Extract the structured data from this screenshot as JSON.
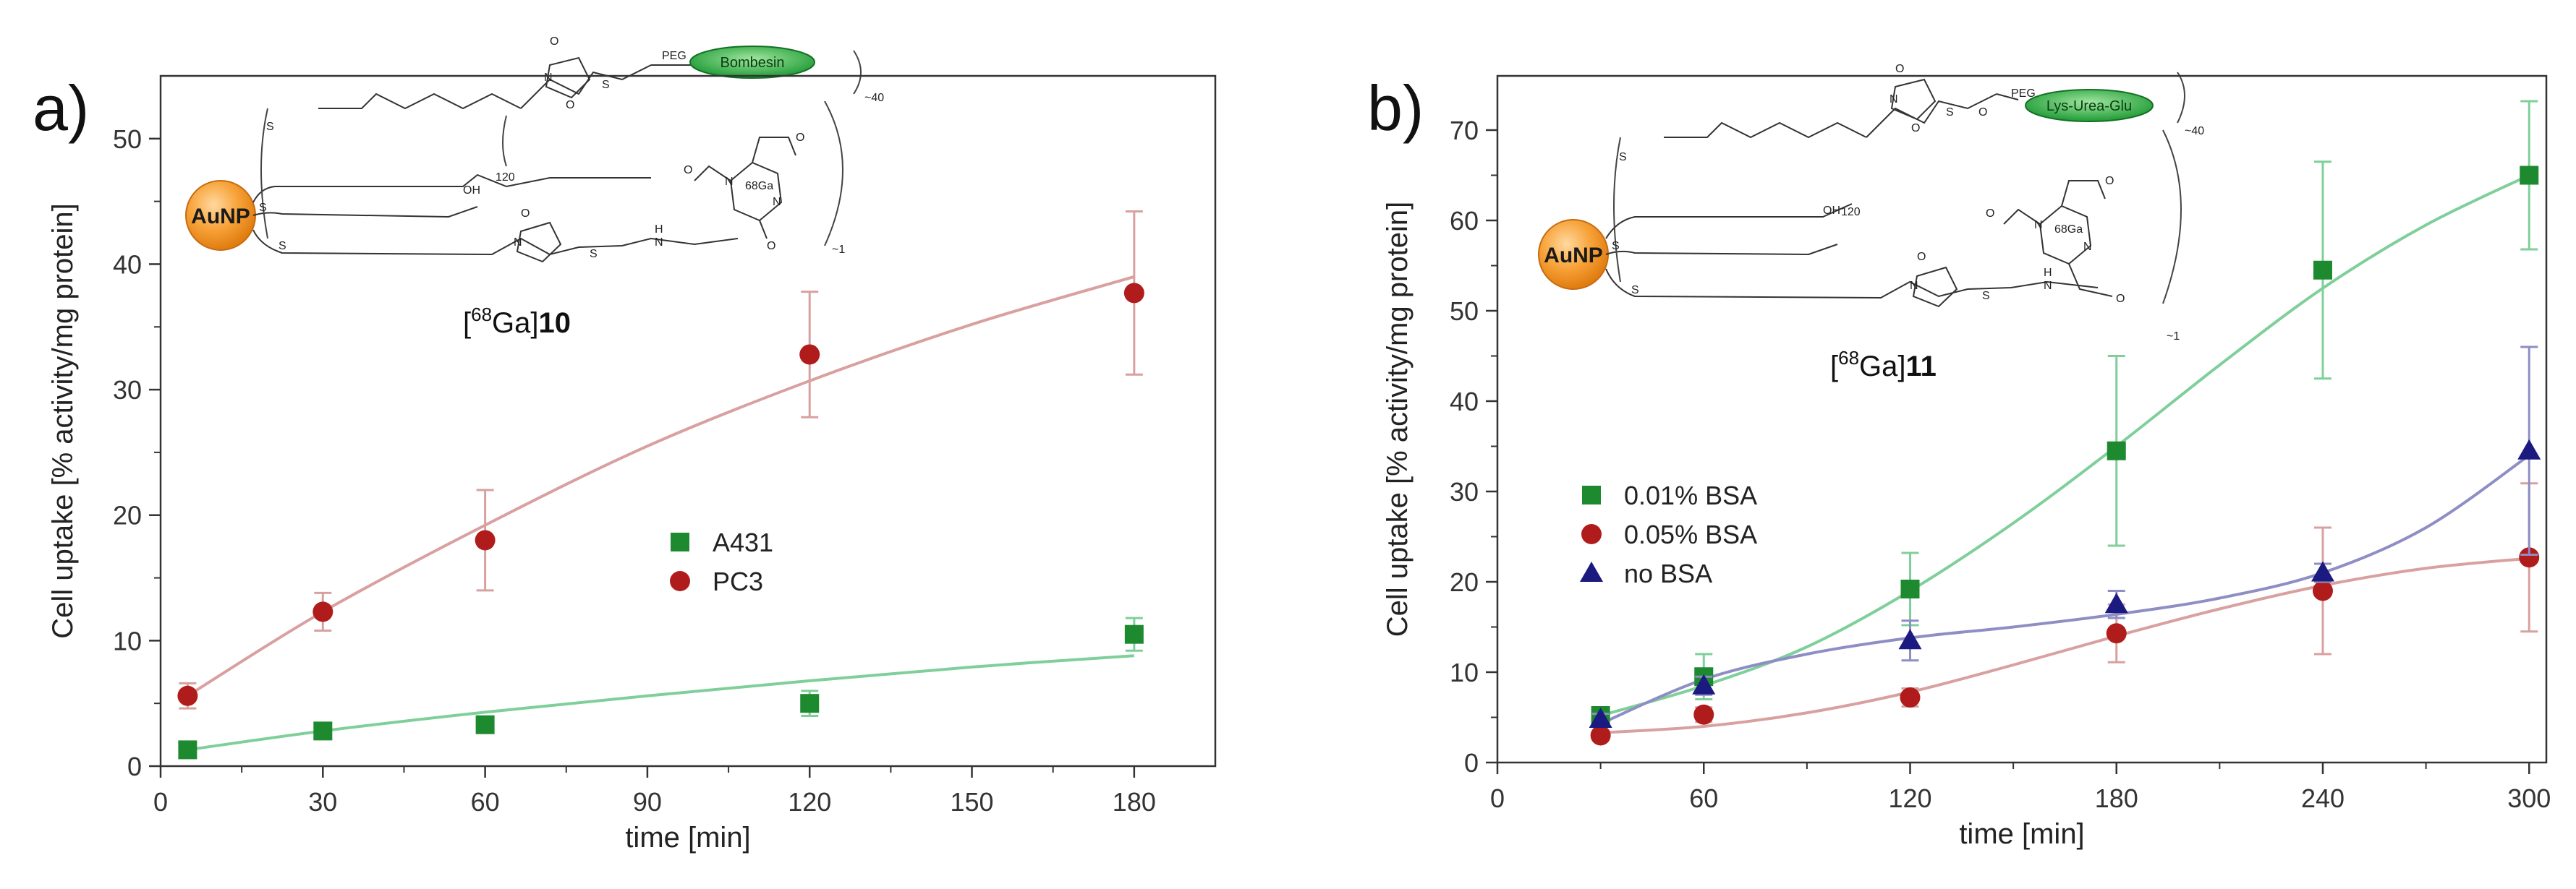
{
  "chart_data": [
    {
      "type": "scatter",
      "panel_label": "a)",
      "xlabel": "time [min]",
      "ylabel": "Cell uptake [% activity/mg protein]",
      "xlim": [
        0,
        195
      ],
      "ylim": [
        0,
        55
      ],
      "xticks": [
        0,
        30,
        60,
        90,
        120,
        150,
        180
      ],
      "yticks": [
        0,
        10,
        20,
        30,
        40,
        50
      ],
      "legend_position": "center-right",
      "grid": false,
      "series": [
        {
          "name": "A431",
          "marker": "square",
          "color": "#1e8a2f",
          "fit_color": "#7fcf9a",
          "x": [
            5,
            30,
            60,
            120,
            180
          ],
          "y": [
            1.3,
            2.8,
            3.3,
            5.0,
            10.5
          ],
          "err": [
            0.3,
            0.4,
            0.6,
            1.0,
            1.3
          ],
          "fit_x": [
            5,
            30,
            60,
            90,
            120,
            150,
            180
          ],
          "fit_y": [
            1.3,
            2.8,
            4.3,
            5.6,
            6.8,
            7.9,
            8.8
          ]
        },
        {
          "name": "PC3",
          "marker": "circle",
          "color": "#b01c1c",
          "fit_color": "#d9a0a0",
          "x": [
            5,
            30,
            60,
            120,
            180
          ],
          "y": [
            5.6,
            12.3,
            18.0,
            32.8,
            37.7
          ],
          "err": [
            1.0,
            1.5,
            4.0,
            5.0,
            6.5
          ],
          "fit_x": [
            5,
            30,
            60,
            90,
            120,
            150,
            180
          ],
          "fit_y": [
            5.6,
            12.3,
            19.2,
            25.5,
            30.7,
            35.2,
            39.0
          ]
        }
      ],
      "annotation": {
        "compound_label": "[68Ga]10",
        "compound_prefix": "[",
        "compound_sup": "68",
        "compound_mid": "Ga]",
        "compound_num": "10",
        "nanoparticle": "AuNP",
        "ligand": "Bombesin",
        "peg": "PEG",
        "count_top": "~40",
        "count_mid": "120",
        "count_bottom": "~1",
        "chelate": "68Ga",
        "atoms": {
          "o": "O",
          "s": "S",
          "n": "N",
          "oh": "OH",
          "h": "H"
        }
      }
    },
    {
      "type": "scatter",
      "panel_label": "b)",
      "xlabel": "time [min]",
      "ylabel": "Cell uptake [% activity/mg protein]",
      "xlim": [
        0,
        305
      ],
      "ylim": [
        0,
        76
      ],
      "xticks": [
        0,
        60,
        120,
        180,
        240,
        300
      ],
      "yticks": [
        0,
        10,
        20,
        30,
        40,
        50,
        60,
        70
      ],
      "legend_position": "middle-left",
      "grid": false,
      "series": [
        {
          "name": "0.01% BSA",
          "marker": "square",
          "color": "#1e8a2f",
          "fit_color": "#7fcf9a",
          "x": [
            30,
            60,
            120,
            180,
            240,
            300
          ],
          "y": [
            5.2,
            9.5,
            19.2,
            34.5,
            54.5,
            65.0
          ],
          "err": [
            0.8,
            2.5,
            4.0,
            10.5,
            12.0,
            8.2
          ],
          "fit_x": [
            30,
            60,
            90,
            120,
            150,
            180,
            210,
            240,
            270,
            300
          ],
          "fit_y": [
            5.2,
            8.5,
            12.8,
            19.0,
            26.5,
            35.0,
            44.0,
            52.5,
            59.5,
            65.0
          ]
        },
        {
          "name": "0.05% BSA",
          "marker": "circle",
          "color": "#b01c1c",
          "fit_color": "#d9a0a0",
          "x": [
            30,
            60,
            120,
            180,
            240,
            300
          ],
          "y": [
            3.0,
            5.3,
            7.2,
            14.3,
            19.0,
            22.7
          ],
          "err": [
            0.5,
            0.8,
            1.0,
            3.2,
            7.0,
            8.2
          ],
          "fit_x": [
            30,
            60,
            90,
            120,
            150,
            180,
            210,
            240,
            270,
            300
          ],
          "fit_y": [
            3.3,
            4.0,
            5.5,
            7.8,
            10.8,
            14.0,
            17.0,
            19.6,
            21.5,
            22.6
          ]
        },
        {
          "name": "no BSA",
          "marker": "triangle",
          "color": "#1a1a80",
          "fit_color": "#8e8ec4",
          "x": [
            30,
            60,
            120,
            180,
            240,
            300
          ],
          "y": [
            4.8,
            8.5,
            13.5,
            17.5,
            21.0,
            34.5
          ],
          "err": [
            0.6,
            1.0,
            2.2,
            1.5,
            1.0,
            11.5
          ],
          "fit_x": [
            30,
            60,
            90,
            120,
            150,
            180,
            210,
            240,
            270,
            300
          ],
          "fit_y": [
            4.3,
            9.2,
            12.0,
            13.8,
            15.0,
            16.4,
            18.2,
            21.0,
            26.0,
            34.0
          ]
        }
      ],
      "annotation": {
        "compound_label": "[68Ga]11",
        "compound_prefix": "[",
        "compound_sup": "68",
        "compound_mid": "Ga]",
        "compound_num": "11",
        "nanoparticle": "AuNP",
        "ligand": "Lys-Urea-Glu",
        "peg": "PEG",
        "count_top": "~40",
        "count_mid": "120",
        "count_bottom": "~1",
        "chelate": "68Ga",
        "atoms": {
          "o": "O",
          "s": "S",
          "n": "N",
          "oh": "OH",
          "h": "H"
        }
      }
    }
  ]
}
